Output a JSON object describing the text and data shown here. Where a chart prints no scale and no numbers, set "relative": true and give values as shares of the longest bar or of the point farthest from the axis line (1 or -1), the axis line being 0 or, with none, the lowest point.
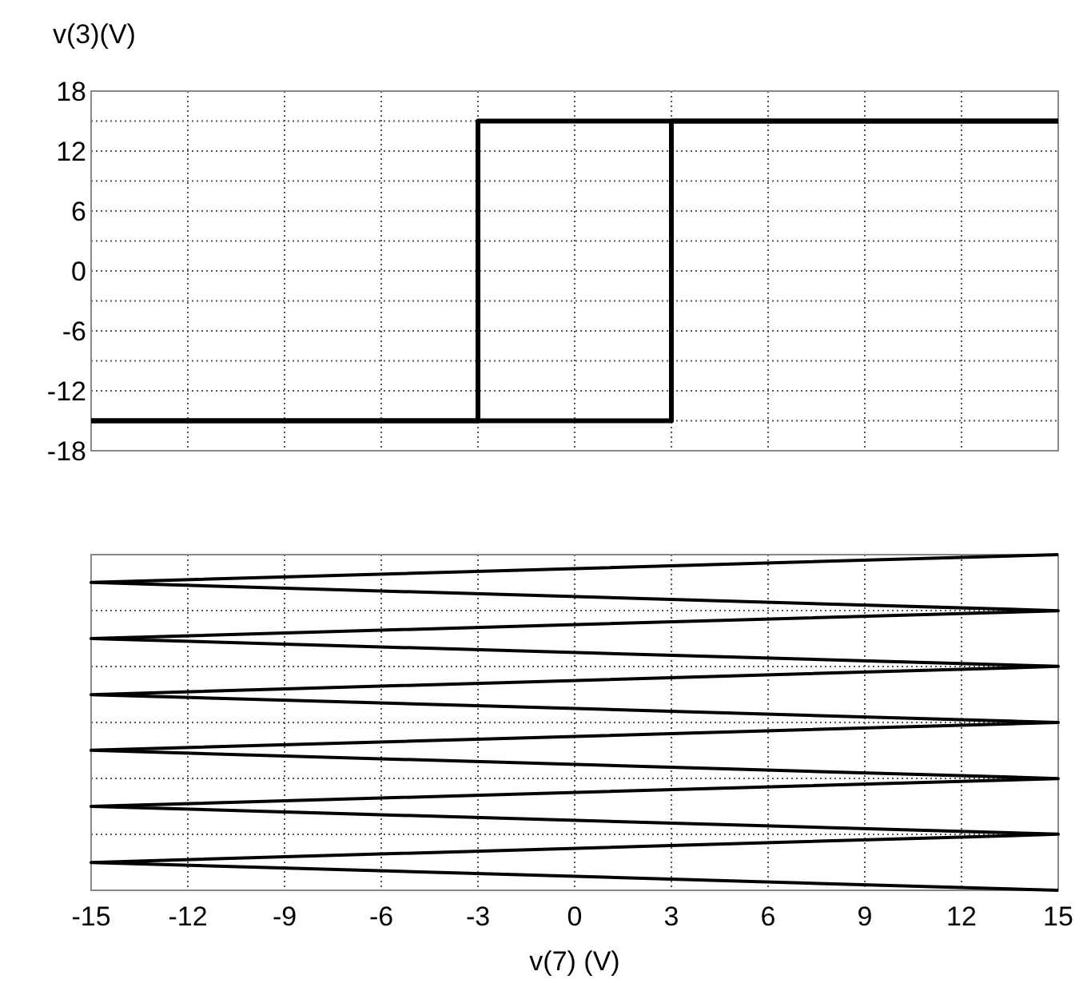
{
  "chart_data": [
    {
      "type": "line",
      "ylabel": "v(3)(V)",
      "xlim": [
        -15,
        15
      ],
      "xticks": [
        -15,
        -12,
        -9,
        -6,
        -3,
        0,
        3,
        6,
        9,
        12,
        15
      ],
      "ylim": [
        -18,
        18
      ],
      "yticks": [
        -18,
        {
          "value": -15,
          "label": null
        },
        -12,
        {
          "value": -9,
          "label": null
        },
        -6,
        {
          "value": -3,
          "label": null
        },
        0,
        {
          "value": 3,
          "label": null
        },
        6,
        {
          "value": 9,
          "label": null
        },
        12,
        {
          "value": 15,
          "label": null
        },
        18
      ],
      "grid": true,
      "tick_labels": "y",
      "series": [
        {
          "color": "#000000",
          "x": [
            -15,
            3,
            3,
            15
          ],
          "values": [
            -15,
            -15,
            15,
            15
          ]
        },
        {
          "color": "#000000",
          "x": [
            15,
            -3,
            -3,
            -15
          ],
          "values": [
            15,
            15,
            -15,
            -15
          ]
        }
      ]
    },
    {
      "type": "line",
      "xlabel": "v(7) (V)",
      "xlim": [
        -15,
        15
      ],
      "xticks": [
        -15,
        -12,
        -9,
        -6,
        -3,
        0,
        3,
        6,
        9,
        12,
        15
      ],
      "relative": true,
      "grid": true,
      "tick_labels": "x",
      "series": [
        {
          "color": "#000000",
          "x": [
            15,
            -15,
            15,
            -15,
            15,
            -15,
            15,
            -15,
            15,
            -15,
            15,
            -15,
            15
          ],
          "values": [
            1,
            0.917,
            0.833,
            0.75,
            0.667,
            0.583,
            0.5,
            0.417,
            0.333,
            0.25,
            0.167,
            0.083,
            0
          ]
        }
      ]
    }
  ]
}
